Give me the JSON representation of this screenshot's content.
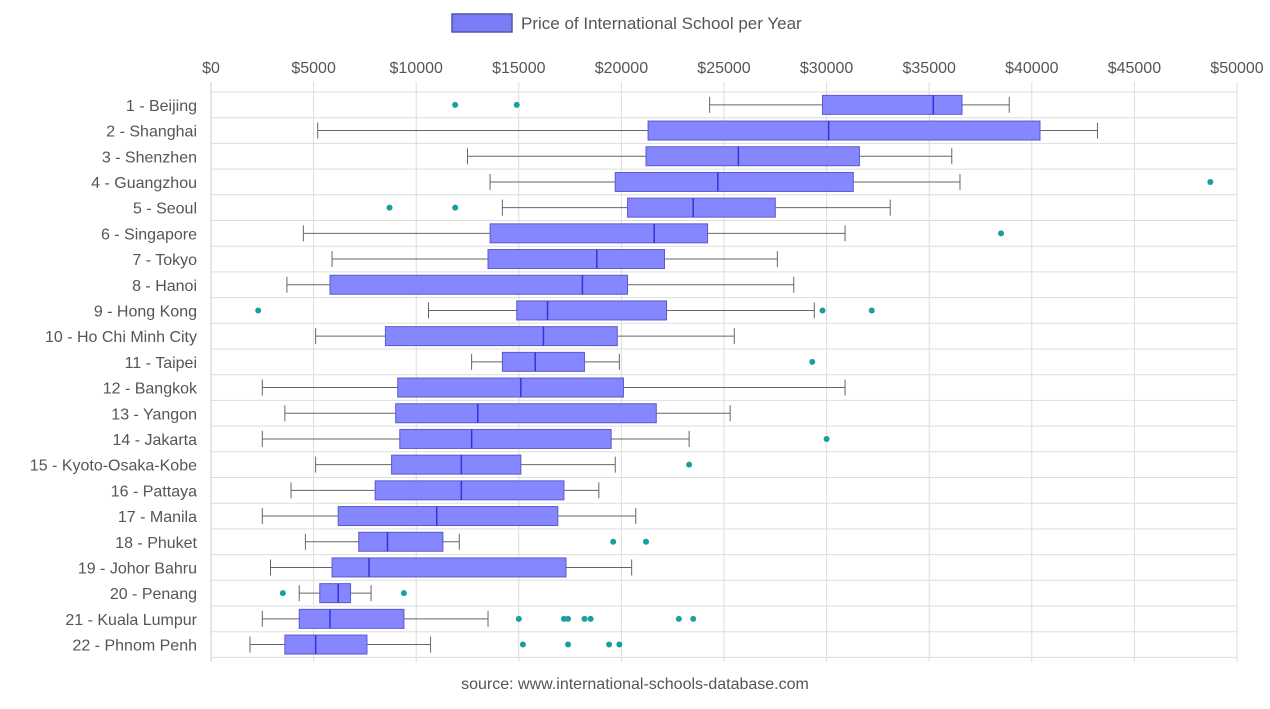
{
  "legend": {
    "label": "Price of International School per Year",
    "color": "#7b7bf7",
    "border": "#5555aa"
  },
  "source": "source: www.international-schools-database.com",
  "colors": {
    "box_fill": "#8080ff",
    "box_stroke": "#5a5acc",
    "median": "#3333dd",
    "whisker": "#666666",
    "outlier": "#1a9f9f",
    "grid": "#dddddd"
  },
  "chart_data": {
    "type": "boxplot",
    "orientation": "horizontal",
    "xlim": [
      0,
      50000
    ],
    "xticks": [
      0,
      5000,
      10000,
      15000,
      20000,
      25000,
      30000,
      35000,
      40000,
      45000,
      50000
    ],
    "xtick_labels": [
      "$0",
      "$5000",
      "$10000",
      "$15000",
      "$20000",
      "$25000",
      "$30000",
      "$35000",
      "$40000",
      "$45000",
      "$50000"
    ],
    "series_name": "Price of International School per Year",
    "categories": [
      {
        "label": "1 - Beijing",
        "min": 24300,
        "q1": 29800,
        "median": 35200,
        "q3": 36600,
        "max": 38900,
        "outliers": [
          11900,
          14900
        ]
      },
      {
        "label": "2 - Shanghai",
        "min": 5200,
        "q1": 21300,
        "median": 30100,
        "q3": 40400,
        "max": 43200,
        "outliers": []
      },
      {
        "label": "3 - Shenzhen",
        "min": 12500,
        "q1": 21200,
        "median": 25700,
        "q3": 31600,
        "max": 36100,
        "outliers": []
      },
      {
        "label": "4 - Guangzhou",
        "min": 13600,
        "q1": 19700,
        "median": 24700,
        "q3": 31300,
        "max": 36500,
        "outliers": [
          48700
        ]
      },
      {
        "label": "5 - Seoul",
        "min": 14200,
        "q1": 20300,
        "median": 23500,
        "q3": 27500,
        "max": 33100,
        "outliers": [
          8700,
          11900
        ]
      },
      {
        "label": "6 - Singapore",
        "min": 4500,
        "q1": 13600,
        "median": 21600,
        "q3": 24200,
        "max": 30900,
        "outliers": [
          38500
        ]
      },
      {
        "label": "7 - Tokyo",
        "min": 5900,
        "q1": 13500,
        "median": 18800,
        "q3": 22100,
        "max": 27600,
        "outliers": []
      },
      {
        "label": "8 - Hanoi",
        "min": 3700,
        "q1": 5800,
        "median": 18100,
        "q3": 20300,
        "max": 28400,
        "outliers": []
      },
      {
        "label": "9 - Hong Kong",
        "min": 10600,
        "q1": 14900,
        "median": 16400,
        "q3": 22200,
        "max": 29400,
        "outliers": [
          2300,
          29800,
          32200
        ]
      },
      {
        "label": "10 - Ho Chi Minh City",
        "min": 5100,
        "q1": 8500,
        "median": 16200,
        "q3": 19800,
        "max": 25500,
        "outliers": []
      },
      {
        "label": "11 - Taipei",
        "min": 12700,
        "q1": 14200,
        "median": 15800,
        "q3": 18200,
        "max": 19900,
        "outliers": [
          29300
        ]
      },
      {
        "label": "12 - Bangkok",
        "min": 2500,
        "q1": 9100,
        "median": 15100,
        "q3": 20100,
        "max": 30900,
        "outliers": []
      },
      {
        "label": "13 - Yangon",
        "min": 3600,
        "q1": 9000,
        "median": 13000,
        "q3": 21700,
        "max": 25300,
        "outliers": []
      },
      {
        "label": "14 - Jakarta",
        "min": 2500,
        "q1": 9200,
        "median": 12700,
        "q3": 19500,
        "max": 23300,
        "outliers": [
          30000
        ]
      },
      {
        "label": "15 - Kyoto-Osaka-Kobe",
        "min": 5100,
        "q1": 8800,
        "median": 12200,
        "q3": 15100,
        "max": 19700,
        "outliers": [
          23300
        ]
      },
      {
        "label": "16 - Pattaya",
        "min": 3900,
        "q1": 8000,
        "median": 12200,
        "q3": 17200,
        "max": 18900,
        "outliers": []
      },
      {
        "label": "17 - Manila",
        "min": 2500,
        "q1": 6200,
        "median": 11000,
        "q3": 16900,
        "max": 20700,
        "outliers": []
      },
      {
        "label": "18 - Phuket",
        "min": 4600,
        "q1": 7200,
        "median": 8600,
        "q3": 11300,
        "max": 12100,
        "outliers": [
          19600,
          21200
        ]
      },
      {
        "label": "19 - Johor Bahru",
        "min": 2900,
        "q1": 5900,
        "median": 7700,
        "q3": 17300,
        "max": 20500,
        "outliers": []
      },
      {
        "label": "20 - Penang",
        "min": 4300,
        "q1": 5300,
        "median": 6200,
        "q3": 6800,
        "max": 7800,
        "outliers": [
          3500,
          9400
        ]
      },
      {
        "label": "21 - Kuala Lumpur",
        "min": 2500,
        "q1": 4300,
        "median": 5800,
        "q3": 9400,
        "max": 13500,
        "outliers": [
          15000,
          17200,
          17400,
          18200,
          18500,
          22800,
          23500
        ]
      },
      {
        "label": "22 - Phnom Penh",
        "min": 1900,
        "q1": 3600,
        "median": 5100,
        "q3": 7600,
        "max": 10700,
        "outliers": [
          15200,
          17400,
          19400,
          19900
        ]
      }
    ]
  }
}
